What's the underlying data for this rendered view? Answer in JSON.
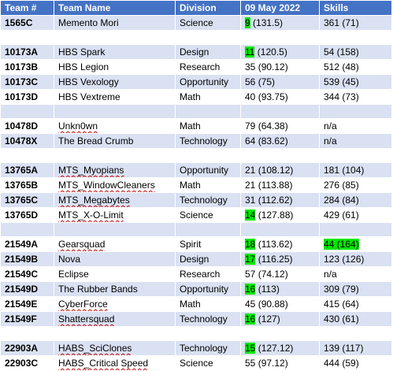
{
  "headers": [
    "Team #",
    "Team Name",
    "Division",
    "09 May 2022",
    "Skills"
  ],
  "rows": [
    {
      "team": "1565C",
      "name": "Memento Mori",
      "division": "Science",
      "rank": "9",
      "rank_detail": " (131.5)",
      "skills": "361 (71)"
    },
    {
      "spacer": true
    },
    {
      "team": "10173A",
      "name": "HBS Spark",
      "division": "Design",
      "rank": "11",
      "rank_detail": " (120.5)",
      "skills": "54 (158)"
    },
    {
      "team": "10173B",
      "name": "HBS Legion",
      "division": "Research",
      "rank": "35",
      "rank_detail": " (90.12)",
      "skills": "512 (48)"
    },
    {
      "team": "10173C",
      "name": "HBS Vexology",
      "division": "Opportunity",
      "rank": "56",
      "rank_detail": " (75)",
      "skills": "539 (45)"
    },
    {
      "team": "10173D",
      "name": "HBS Vextreme",
      "division": "Math",
      "rank": "40",
      "rank_detail": " (93.75)",
      "skills": "344 (73)"
    },
    {
      "spacer": true
    },
    {
      "team": "10478D",
      "name": "Unkn0wn",
      "division": "Math",
      "rank": "79",
      "rank_detail": " (64.38)",
      "skills": "n/a"
    },
    {
      "team": "10478X",
      "name": "The Bread Crumb",
      "division": "Technology",
      "rank": "64",
      "rank_detail": " (83.62)",
      "skills": "n/a"
    },
    {
      "spacer": true
    },
    {
      "team": "13765A",
      "name": "MTS_Myopians",
      "division": "Opportunity",
      "rank": "21",
      "rank_detail": " (108.12)",
      "skills": "181 (104)"
    },
    {
      "team": "13765B",
      "name": "MTS_WindowCleaners",
      "division": "Math",
      "rank": "21",
      "rank_detail": " (113.88)",
      "skills": "276 (85)"
    },
    {
      "team": "13765C",
      "name": "MTS_Megabytes",
      "division": "Technology",
      "rank": "31",
      "rank_detail": " (112.62)",
      "skills": "284 (84)"
    },
    {
      "team": "13765D",
      "name": "MTS_X-O-Limit",
      "division": "Science",
      "rank": "14",
      "rank_detail": " (127.88)",
      "skills": "429 (61)"
    },
    {
      "spacer": true
    },
    {
      "team": "21549A",
      "name": "Gearsquad",
      "division": "Spirit",
      "rank": "18",
      "rank_detail": " (113.62)",
      "skills": "44 (164)"
    },
    {
      "team": "21549B",
      "name": "Nova",
      "division": "Design",
      "rank": "17",
      "rank_detail": " (116.25)",
      "skills": "123 (126)"
    },
    {
      "team": "21549C",
      "name": "Eclipse",
      "division": "Research",
      "rank": "57",
      "rank_detail": " (74.12)",
      "skills": "n/a"
    },
    {
      "team": "21549D",
      "name": "The Rubber Bands",
      "division": "Opportunity",
      "rank": "16",
      "rank_detail": " (113)",
      "skills": "309 (79)"
    },
    {
      "team": "21549E",
      "name": "CyberForce",
      "division": "Math",
      "rank": "45",
      "rank_detail": " (90.88)",
      "skills": "415 (64)"
    },
    {
      "team": "21549F",
      "name": "Shattersquad",
      "division": "Technology",
      "rank": "16",
      "rank_detail": " (127)",
      "skills": "430 (61)"
    },
    {
      "spacer": true
    },
    {
      "team": "22903A",
      "name": "HABS_SciClones",
      "division": "Technology",
      "rank": "15",
      "rank_detail": " (127.12)",
      "skills": "139 (117)"
    },
    {
      "team": "22903C",
      "name": "HABS_Critical Speed",
      "division": "Science",
      "rank": "55",
      "rank_detail": " (97.12)",
      "skills": "444 (59)"
    }
  ],
  "highlighted_ranks": [
    "1565C",
    "10173A",
    "13765D",
    "21549A",
    "21549B",
    "21549D",
    "21549F",
    "22903A"
  ],
  "highlighted_skills": [
    "21549A"
  ],
  "squiggly_names": [
    "Unkn0wn",
    "MTS_Myopians",
    "MTS_WindowCleaners",
    "MTS_Megabytes",
    "MTS_X-O-Limit",
    "Gearsquad",
    "CyberForce",
    "Shattersquad",
    "HABS_SciClones",
    "HABS_Critical Speed"
  ],
  "colors": {
    "header_bg": "#4472c4",
    "band_bg": "#d9e1f2",
    "highlight": "#00e600"
  }
}
